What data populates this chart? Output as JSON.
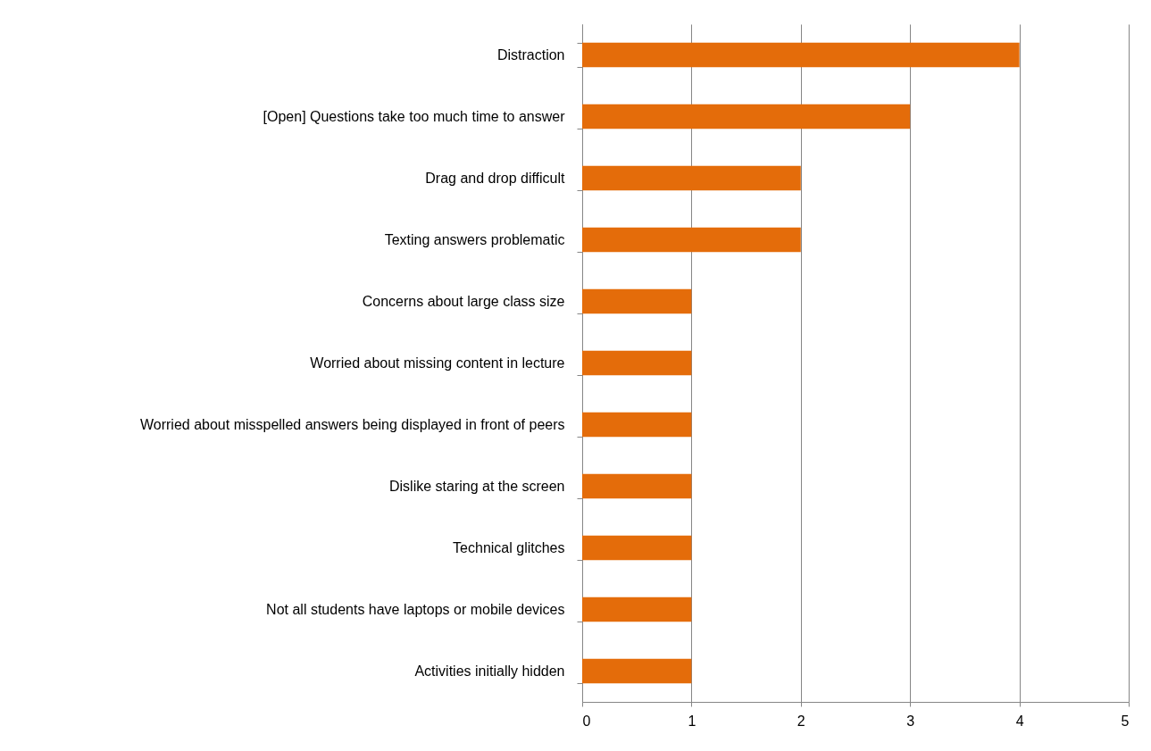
{
  "chart_data": {
    "type": "bar",
    "orientation": "horizontal",
    "categories": [
      "Distraction",
      "[Open] Questions take too much time to answer",
      "Drag and drop difficult",
      "Texting answers problematic",
      "Concerns about large class size",
      "Worried about missing content in lecture",
      "Worried about misspelled answers being displayed in front of peers",
      "Dislike staring at the screen",
      "Technical glitches",
      "Not all students have laptops or mobile devices",
      "Activities initially hidden"
    ],
    "values": [
      4,
      3,
      2,
      2,
      1,
      1,
      1,
      1,
      1,
      1,
      1
    ],
    "color": "#e46c0a",
    "xlim": [
      0,
      5
    ],
    "xticks": [
      0,
      1,
      2,
      3,
      4,
      5
    ],
    "grid": "x"
  }
}
